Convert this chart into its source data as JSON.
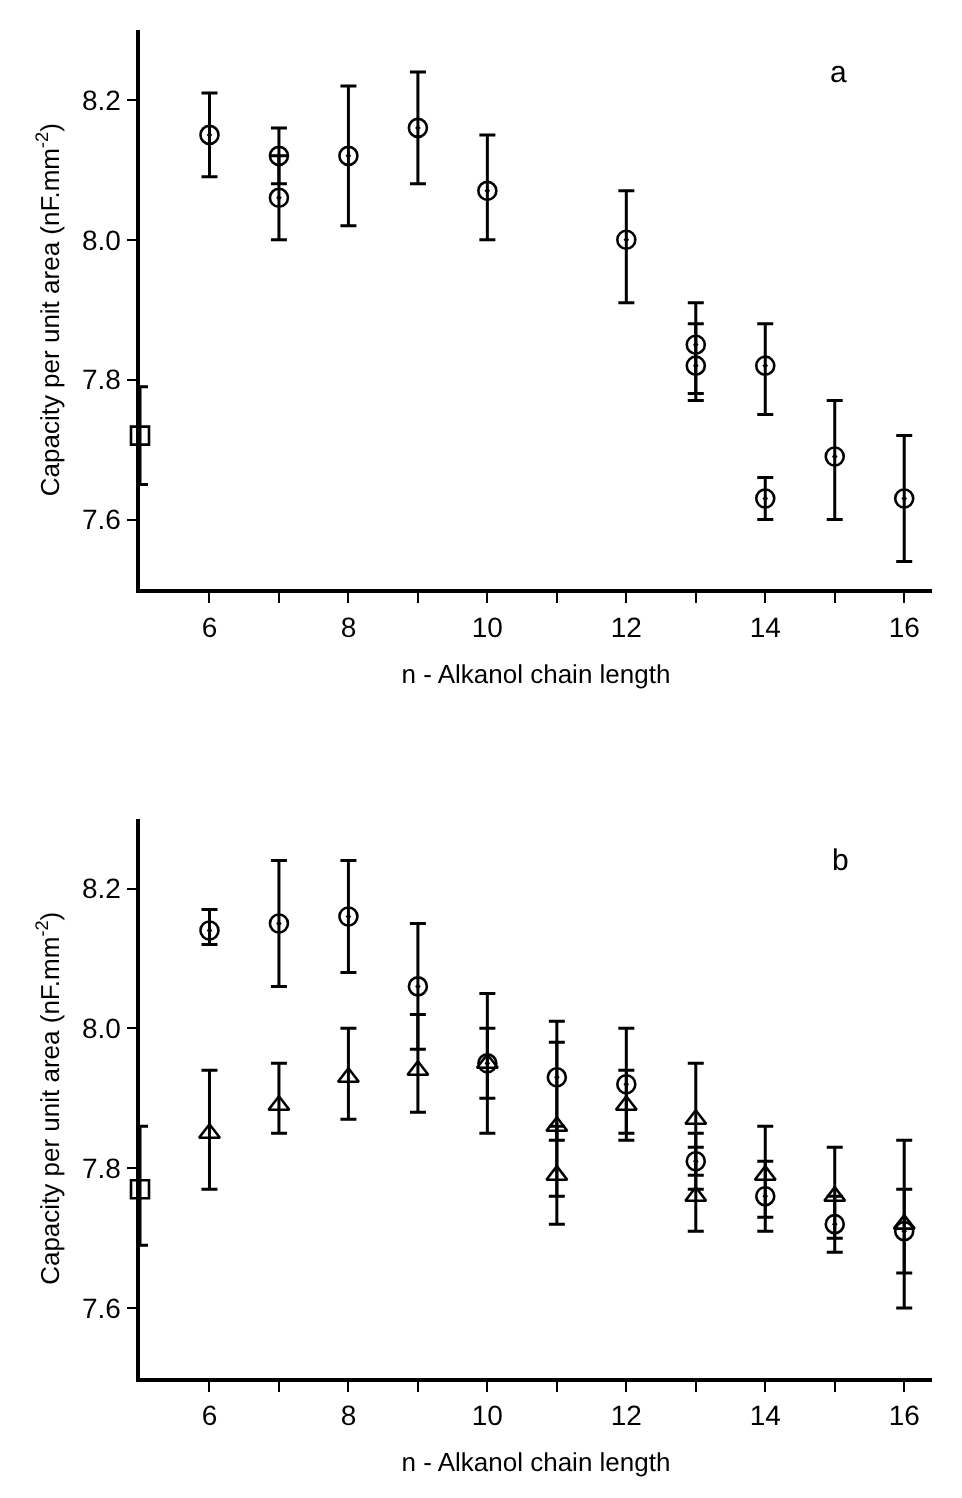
{
  "chart_data": [
    {
      "type": "scatter",
      "annotations": [
        "a"
      ],
      "xlabel": "n - Alkanol chain length",
      "ylabel": "Capacity per unit area (nF.mm$^{-2}$)",
      "xlim": [
        5,
        16.4
      ],
      "xticks": [
        6,
        {
          "value": 7,
          "label": null
        },
        8,
        {
          "value": 9,
          "label": null
        },
        10,
        {
          "value": 11,
          "label": null
        },
        12,
        {
          "value": 13,
          "label": null
        },
        14,
        {
          "value": 15,
          "label": null
        },
        16
      ],
      "ylim": [
        7.5,
        8.3
      ],
      "yticks": [
        7.6,
        7.8,
        {
          "value": 8,
          "label": "8.0"
        },
        8.2
      ],
      "series": [
        {
          "color": "#000000",
          "marker": "circle",
          "x": [
            6,
            7,
            7,
            8,
            9,
            10,
            12,
            13,
            13,
            14,
            14,
            15,
            16
          ],
          "values": [
            8.15,
            8.12,
            8.06,
            8.12,
            8.16,
            8.07,
            8.0,
            7.85,
            7.82,
            7.82,
            7.63,
            7.69,
            7.63
          ],
          "errors": [
            [
              8.09,
              8.21
            ],
            [
              8.08,
              8.16
            ],
            [
              8.0,
              8.12
            ],
            [
              8.02,
              8.22
            ],
            [
              8.08,
              8.24
            ],
            [
              8.0,
              8.15
            ],
            [
              7.91,
              8.07
            ],
            [
              7.78,
              7.91
            ],
            [
              7.77,
              7.88
            ],
            [
              7.75,
              7.88
            ],
            [
              7.6,
              7.66
            ],
            [
              7.6,
              7.77
            ],
            [
              7.54,
              7.72
            ]
          ]
        },
        {
          "color": "#000000",
          "marker": "square",
          "x": [
            5
          ],
          "values": [
            7.72
          ],
          "errors": [
            [
              7.65,
              7.79
            ]
          ]
        }
      ]
    },
    {
      "type": "scatter",
      "annotations": [
        "b"
      ],
      "xlabel": "n - Alkanol chain length",
      "ylabel": "Capacity per unit area (nF.mm$^{-2}$)",
      "xlim": [
        5,
        16.4
      ],
      "xticks": [
        6,
        {
          "value": 7,
          "label": null
        },
        8,
        {
          "value": 9,
          "label": null
        },
        10,
        {
          "value": 11,
          "label": null
        },
        12,
        {
          "value": 13,
          "label": null
        },
        14,
        {
          "value": 15,
          "label": null
        },
        16
      ],
      "ylim": [
        7.5,
        8.3
      ],
      "yticks": [
        7.6,
        7.8,
        {
          "value": 8,
          "label": "8.0"
        },
        8.2
      ],
      "series": [
        {
          "color": "#000000",
          "marker": "circle",
          "x": [
            6,
            7,
            8,
            9,
            10,
            11,
            12,
            13,
            14,
            15,
            16
          ],
          "values": [
            8.14,
            8.15,
            8.16,
            8.06,
            7.95,
            7.93,
            7.92,
            7.81,
            7.76,
            7.72,
            7.71
          ],
          "errors": [
            [
              8.12,
              8.17
            ],
            [
              8.06,
              8.24
            ],
            [
              8.08,
              8.24
            ],
            [
              7.97,
              8.15
            ],
            [
              7.85,
              8.05
            ],
            [
              7.84,
              8.01
            ],
            [
              7.84,
              8.0
            ],
            [
              7.77,
              7.85
            ],
            [
              7.71,
              7.81
            ],
            [
              7.68,
              7.76
            ],
            [
              7.6,
              7.84
            ]
          ]
        },
        {
          "color": "#000000",
          "marker": "triangle",
          "x": [
            6,
            7,
            8,
            9,
            10,
            11,
            11,
            12,
            13,
            13,
            14,
            15,
            16
          ],
          "values": [
            7.85,
            7.89,
            7.93,
            7.94,
            7.95,
            7.86,
            7.79,
            7.89,
            7.87,
            7.76,
            7.79,
            7.76,
            7.72
          ],
          "errors": [
            [
              7.77,
              7.94
            ],
            [
              7.85,
              7.95
            ],
            [
              7.87,
              8.0
            ],
            [
              7.88,
              8.02
            ],
            [
              7.9,
              8.0
            ],
            [
              7.76,
              7.98
            ],
            [
              7.72,
              7.86
            ],
            [
              7.85,
              7.94
            ],
            [
              7.79,
              7.95
            ],
            [
              7.71,
              7.83
            ],
            [
              7.73,
              7.86
            ],
            [
              7.7,
              7.83
            ],
            [
              7.65,
              7.77
            ]
          ]
        },
        {
          "color": "#000000",
          "marker": "square",
          "x": [
            5
          ],
          "values": [
            7.77
          ],
          "errors": [
            [
              7.69,
              7.86
            ]
          ]
        }
      ]
    }
  ]
}
